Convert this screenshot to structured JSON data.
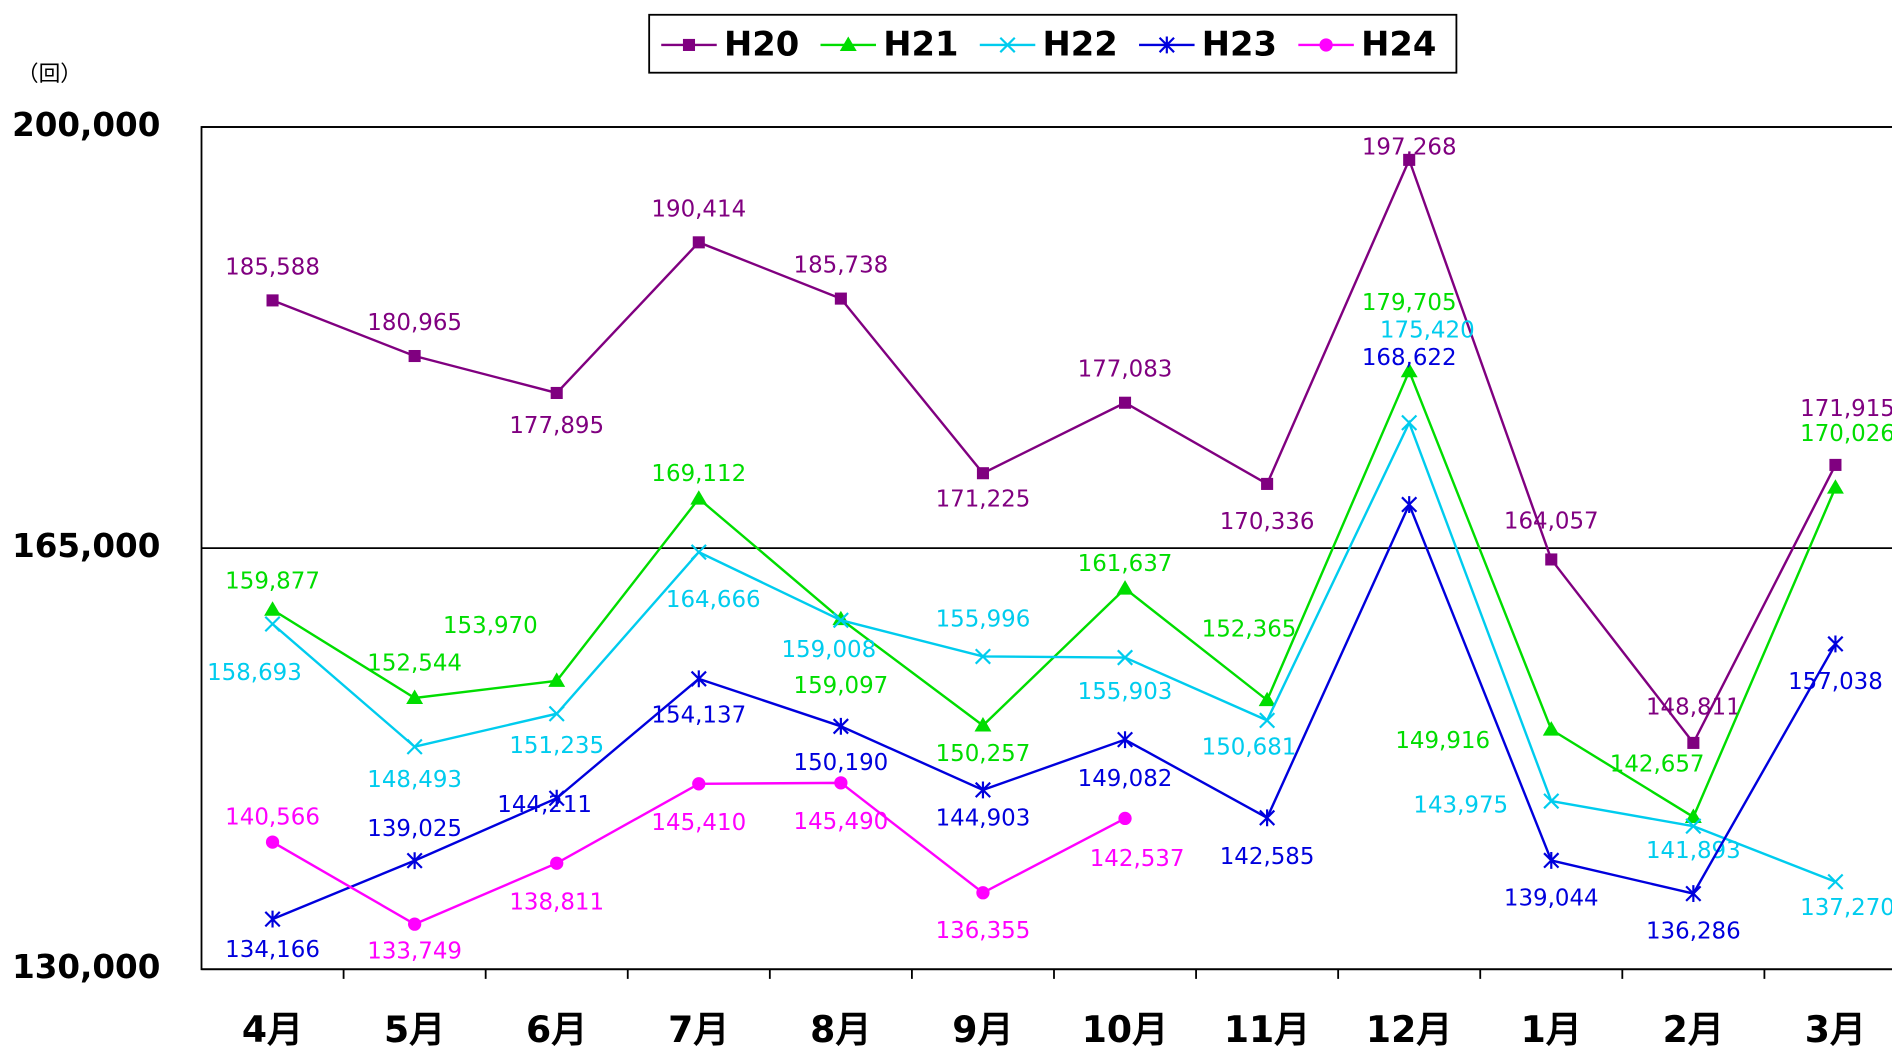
{
  "chart_data": {
    "type": "line",
    "y_label": "（回）",
    "categories": [
      "4月",
      "5月",
      "6月",
      "7月",
      "8月",
      "9月",
      "10月",
      "11月",
      "12月",
      "1月",
      "2月",
      "3月"
    ],
    "ylim": [
      130000,
      200000
    ],
    "yticks": [
      {
        "value": 130000,
        "label": "130,000"
      },
      {
        "value": 165000,
        "label": "165,000"
      },
      {
        "value": 200000,
        "label": "200,000"
      }
    ],
    "grid": true,
    "legend": "top",
    "series": [
      {
        "name": "H20",
        "color": "#800080",
        "marker": "square",
        "values": [
          185588,
          180965,
          177895,
          190414,
          185738,
          171225,
          177083,
          170336,
          197268,
          164057,
          148811,
          171915
        ],
        "value_labels": [
          "185,588",
          "180,965",
          "177,895",
          "190,414",
          "185,738",
          "171,225",
          "177,083",
          "170,336",
          "197,268",
          "164,057",
          "148,811",
          "171,915"
        ]
      },
      {
        "name": "H21",
        "color": "#00dd00",
        "marker": "triangle",
        "values": [
          159877,
          152544,
          153970,
          169112,
          159097,
          150257,
          161637,
          152365,
          179705,
          149916,
          142657,
          170026
        ],
        "value_labels": [
          "159,877",
          "152,544",
          "153,970",
          "169,112",
          "159,097",
          "150,257",
          "161,637",
          "152,365",
          "179,705",
          "149,916",
          "142,657",
          "170,026"
        ]
      },
      {
        "name": "H22",
        "color": "#00ccee",
        "marker": "x",
        "values": [
          158693,
          148493,
          151235,
          164666,
          159008,
          155996,
          155903,
          150681,
          175420,
          143975,
          141893,
          137270
        ],
        "value_labels": [
          "158,693",
          "148,493",
          "151,235",
          "164,666",
          "159,008",
          "155,996",
          "155,903",
          "150,681",
          "175,420",
          "143,975",
          "141,893",
          "137,270"
        ]
      },
      {
        "name": "H23",
        "color": "#0000dd",
        "marker": "asterisk",
        "values": [
          134166,
          139025,
          144211,
          154137,
          150190,
          144903,
          149082,
          142585,
          168622,
          139044,
          136286,
          157038
        ],
        "value_labels": [
          "134,166",
          "139,025",
          "144,211",
          "154,137",
          "150,190",
          "144,903",
          "149,082",
          "142,585",
          "168,622",
          "139,044",
          "136,286",
          "157,038"
        ]
      },
      {
        "name": "H24",
        "color": "#ff00ff",
        "marker": "circle",
        "values": [
          140566,
          133749,
          138811,
          145410,
          145490,
          136355,
          142537,
          null,
          null,
          null,
          null,
          null
        ],
        "value_labels": [
          "140,566",
          "133,749",
          "138,811",
          "145,410",
          "145,490",
          "136,355",
          "142,537",
          null,
          null,
          null,
          null,
          null
        ]
      }
    ]
  }
}
